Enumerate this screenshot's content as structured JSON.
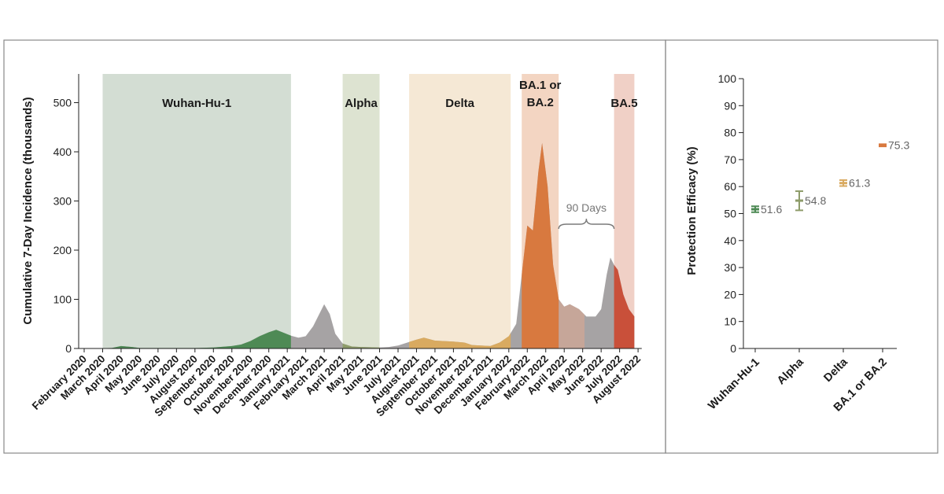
{
  "chart_data": [
    {
      "type": "area",
      "ylabel": "Cumulative 7-Day Incidence (thousands)",
      "ylim": [
        0,
        560
      ],
      "yticks": [
        0,
        100,
        200,
        300,
        400,
        500
      ],
      "months": [
        "February 2020",
        "March 2020",
        "April 2020",
        "May 2020",
        "June 2020",
        "July 2020",
        "August 2020",
        "September 2020",
        "October 2020",
        "November 2020",
        "December 2020",
        "January 2021",
        "February 2021",
        "March 2021",
        "April 2021",
        "May 2021",
        "June 2021",
        "July 2021",
        "August 2021",
        "September 2021",
        "October 2021",
        "November 2021",
        "December 2021",
        "January 2022",
        "February 2022",
        "March 2022",
        "April 2022",
        "May 2022",
        "June 2022",
        "July 2022",
        "August 2022"
      ],
      "periods": [
        {
          "label": "Wuhan-Hu-1",
          "start": 1.0,
          "end": 11.2,
          "color": "#d3ddd3",
          "area_color": "#4e8a55"
        },
        {
          "label": "Alpha",
          "start": 14.0,
          "end": 16.0,
          "color": "#dde3d1",
          "area_color": "#8e9c6a"
        },
        {
          "label": "Delta",
          "start": 17.6,
          "end": 23.1,
          "color": "#f5e8d5",
          "area_color": "#d9aa60"
        },
        {
          "label": "BA.1 or\nBA.2",
          "start": 23.7,
          "end": 25.7,
          "color": "#f3d5c2",
          "area_color": "#d8793f"
        },
        {
          "label": "BA.5",
          "start": 28.7,
          "end": 29.8,
          "color": "#f0d0c6",
          "area_color": "#c9503a"
        }
      ],
      "series": [
        {
          "values": [
            [
              0,
              0
            ],
            [
              1.5,
              1
            ],
            [
              2,
              5
            ],
            [
              2.6,
              3
            ],
            [
              3,
              1
            ],
            [
              4,
              1
            ],
            [
              5,
              1
            ],
            [
              6,
              1
            ],
            [
              7,
              2
            ],
            [
              8,
              5
            ],
            [
              8.5,
              8
            ],
            [
              9,
              15
            ],
            [
              9.5,
              25
            ],
            [
              10,
              33
            ],
            [
              10.4,
              38
            ],
            [
              10.8,
              32
            ],
            [
              11.2,
              26
            ],
            [
              11.6,
              22
            ],
            [
              12,
              25
            ],
            [
              12.4,
              45
            ],
            [
              12.8,
              75
            ],
            [
              13,
              90
            ],
            [
              13.3,
              70
            ],
            [
              13.6,
              30
            ],
            [
              14,
              10
            ],
            [
              14.5,
              4
            ],
            [
              15,
              3
            ],
            [
              16,
              2
            ],
            [
              16.5,
              3
            ],
            [
              17,
              6
            ],
            [
              17.5,
              12
            ],
            [
              18,
              18
            ],
            [
              18.4,
              22
            ],
            [
              19,
              16
            ],
            [
              20,
              14
            ],
            [
              20.6,
              12
            ],
            [
              21,
              7
            ],
            [
              22,
              5
            ],
            [
              22.5,
              12
            ],
            [
              23,
              25
            ],
            [
              23.4,
              50
            ],
            [
              23.7,
              150
            ],
            [
              24,
              250
            ],
            [
              24.3,
              240
            ],
            [
              24.6,
              360
            ],
            [
              24.8,
              418
            ],
            [
              25.1,
              330
            ],
            [
              25.4,
              170
            ],
            [
              25.7,
              100
            ],
            [
              26,
              85
            ],
            [
              26.3,
              90
            ],
            [
              26.8,
              80
            ],
            [
              27.2,
              65
            ],
            [
              27.7,
              65
            ],
            [
              28,
              80
            ],
            [
              28.3,
              150
            ],
            [
              28.5,
              185
            ],
            [
              28.7,
              170
            ],
            [
              28.9,
              160
            ],
            [
              29.2,
              110
            ],
            [
              29.5,
              80
            ],
            [
              29.8,
              65
            ]
          ]
        }
      ],
      "annotations": [
        {
          "text": "90 Days",
          "start": 25.7,
          "end": 28.7
        }
      ]
    },
    {
      "type": "error-bar",
      "ylabel": "Protection Efficacy (%)",
      "ylim": [
        0,
        100
      ],
      "yticks": [
        0,
        10,
        20,
        30,
        40,
        50,
        60,
        70,
        80,
        90,
        100
      ],
      "categories": [
        "Wuhan-Hu-1",
        "Alpha",
        "Delta",
        "BA.1 or BA.2"
      ],
      "values": [
        51.6,
        54.8,
        61.3,
        75.3
      ],
      "value_labels": [
        "51.6",
        "54.8",
        "61.3",
        "75.3"
      ],
      "lower": [
        50.5,
        51.2,
        60.2,
        74.9
      ],
      "upper": [
        52.7,
        58.3,
        62.4,
        75.7
      ],
      "colors": [
        "#4e8a55",
        "#8e9c6a",
        "#d9aa60",
        "#d8793f"
      ]
    }
  ]
}
